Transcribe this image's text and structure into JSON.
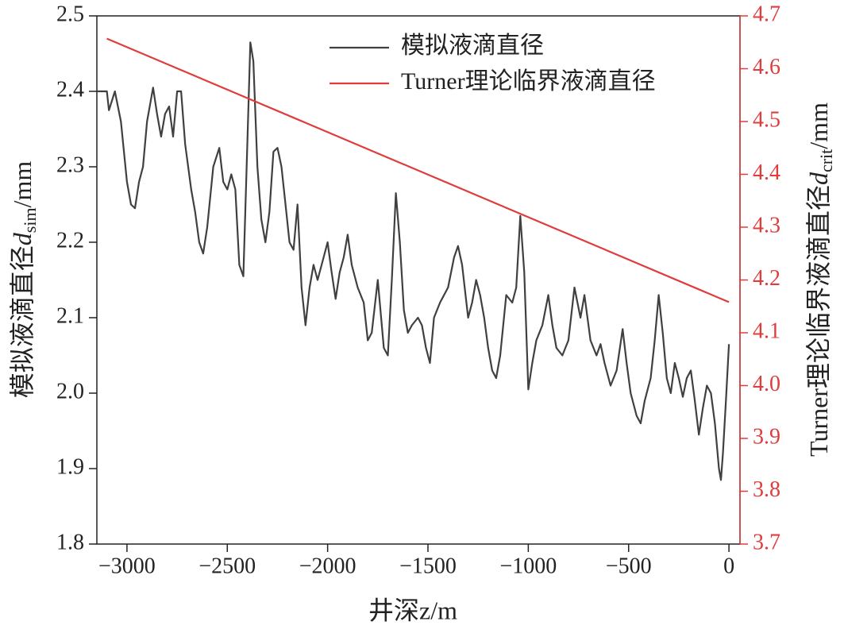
{
  "chart_data": {
    "type": "line",
    "xlabel": "井深z/m",
    "ylabel": [
      "模拟液滴直径",
      "d",
      "sim",
      "/mm"
    ],
    "y2label": [
      "Turner理论临界液滴直径",
      "d",
      "crit",
      "/mm"
    ],
    "xlim": [
      -3150,
      55
    ],
    "xticks": [
      {
        "value": -3000,
        "label": "−3000"
      },
      {
        "value": -2500,
        "label": "−2500"
      },
      {
        "value": -2000,
        "label": "−2000"
      },
      {
        "value": -1500,
        "label": "−1500"
      },
      {
        "value": -1000,
        "label": "−1000"
      },
      {
        "value": -500,
        "label": "−500"
      },
      0
    ],
    "ylim": [
      1.8,
      2.5
    ],
    "yticks": [
      1.8,
      1.9,
      {
        "value": 2,
        "label": "2.0"
      },
      2.1,
      2.2,
      2.3,
      2.4,
      2.5
    ],
    "y2lim": [
      3.7,
      4.7
    ],
    "y2ticks": [
      3.7,
      3.8,
      3.9,
      {
        "value": 4,
        "label": "4.0"
      },
      4.1,
      4.2,
      4.3,
      4.4,
      4.5,
      4.6,
      4.7
    ],
    "y2color": "#e03c3c",
    "legend": "upper right",
    "series": [
      {
        "name": "模拟液滴直径",
        "color": "#404040",
        "x": [
          -3150,
          -3100,
          -3090,
          -3060,
          -3030,
          -3000,
          -2980,
          -2960,
          -2940,
          -2920,
          -2900,
          -2870,
          -2850,
          -2830,
          -2810,
          -2790,
          -2770,
          -2750,
          -2730,
          -2710,
          -2680,
          -2660,
          -2640,
          -2620,
          -2600,
          -2570,
          -2540,
          -2520,
          -2500,
          -2480,
          -2460,
          -2440,
          -2420,
          -2400,
          -2385,
          -2370,
          -2350,
          -2330,
          -2310,
          -2290,
          -2270,
          -2250,
          -2230,
          -2210,
          -2190,
          -2170,
          -2150,
          -2130,
          -2110,
          -2090,
          -2070,
          -2050,
          -2020,
          -2000,
          -1980,
          -1960,
          -1940,
          -1920,
          -1900,
          -1880,
          -1850,
          -1820,
          -1800,
          -1780,
          -1750,
          -1720,
          -1700,
          -1680,
          -1660,
          -1640,
          -1620,
          -1600,
          -1580,
          -1550,
          -1530,
          -1510,
          -1490,
          -1470,
          -1440,
          -1400,
          -1370,
          -1350,
          -1330,
          -1300,
          -1280,
          -1260,
          -1240,
          -1220,
          -1200,
          -1180,
          -1160,
          -1140,
          -1110,
          -1080,
          -1060,
          -1040,
          -1020,
          -1000,
          -980,
          -960,
          -930,
          -900,
          -880,
          -860,
          -830,
          -800,
          -770,
          -740,
          -720,
          -690,
          -660,
          -640,
          -620,
          -590,
          -560,
          -530,
          -510,
          -490,
          -460,
          -440,
          -420,
          -390,
          -370,
          -350,
          -330,
          -310,
          -290,
          -270,
          -250,
          -230,
          -210,
          -190,
          -170,
          -150,
          -130,
          -110,
          -90,
          -70,
          -50,
          -40,
          -30,
          -15,
          0
        ],
        "values": [
          2.4,
          2.4,
          2.375,
          2.4,
          2.36,
          2.28,
          2.25,
          2.245,
          2.28,
          2.3,
          2.36,
          2.405,
          2.37,
          2.34,
          2.37,
          2.38,
          2.34,
          2.4,
          2.4,
          2.33,
          2.27,
          2.24,
          2.2,
          2.185,
          2.22,
          2.3,
          2.325,
          2.28,
          2.27,
          2.29,
          2.27,
          2.17,
          2.155,
          2.33,
          2.465,
          2.44,
          2.3,
          2.23,
          2.2,
          2.24,
          2.32,
          2.325,
          2.3,
          2.25,
          2.2,
          2.19,
          2.25,
          2.14,
          2.09,
          2.14,
          2.17,
          2.15,
          2.18,
          2.2,
          2.16,
          2.125,
          2.16,
          2.18,
          2.21,
          2.17,
          2.14,
          2.12,
          2.07,
          2.08,
          2.15,
          2.06,
          2.05,
          2.15,
          2.265,
          2.2,
          2.11,
          2.08,
          2.09,
          2.1,
          2.09,
          2.06,
          2.04,
          2.1,
          2.12,
          2.14,
          2.18,
          2.195,
          2.17,
          2.1,
          2.12,
          2.15,
          2.13,
          2.1,
          2.06,
          2.03,
          2.02,
          2.05,
          2.13,
          2.12,
          2.14,
          2.235,
          2.16,
          2.005,
          2.04,
          2.07,
          2.09,
          2.13,
          2.09,
          2.06,
          2.05,
          2.07,
          2.14,
          2.1,
          2.13,
          2.07,
          2.05,
          2.065,
          2.04,
          2.01,
          2.03,
          2.085,
          2.04,
          2.0,
          1.97,
          1.96,
          1.99,
          2.02,
          2.07,
          2.13,
          2.08,
          2.02,
          2.0,
          2.04,
          2.02,
          1.995,
          2.02,
          2.03,
          1.99,
          1.945,
          1.98,
          2.01,
          2.0,
          1.96,
          1.9,
          1.885,
          1.92,
          1.99,
          2.065
        ]
      },
      {
        "name": "Turner理论临界液滴直径",
        "color": "#e03c3c",
        "axis": "y2",
        "x": [
          -3100,
          0
        ],
        "values": [
          4.657,
          4.158
        ]
      }
    ]
  }
}
